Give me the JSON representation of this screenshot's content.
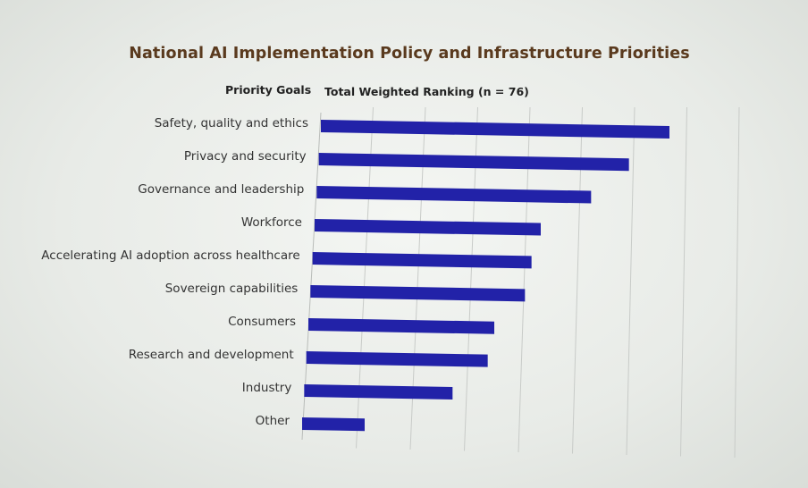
{
  "title": "National AI Implementation Policy and Infrastructure Priorities",
  "headers": {
    "left": "Priority Goals",
    "right": "Total Weighted Ranking (n = 76)"
  },
  "colors": {
    "bar": "#2222a8",
    "grid": "#c8cbc8",
    "title": "#5a3a1e"
  },
  "chart_data": {
    "type": "bar",
    "orientation": "horizontal",
    "title": "National AI Implementation Policy and Infrastructure Priorities",
    "xlabel": "Total Weighted Ranking (n = 76)",
    "ylabel": "Priority Goals",
    "grid": true,
    "categories": [
      "Safety, quality and ethics",
      "Privacy and security",
      "Governance and leadership",
      "Workforce",
      "Accelerating AI adoption across healthcare",
      "Sovereign capabilities",
      "Consumers",
      "Research and development",
      "Industry",
      "Other"
    ],
    "values": [
      390,
      347,
      307,
      253,
      245,
      240,
      208,
      203,
      166,
      70
    ]
  }
}
